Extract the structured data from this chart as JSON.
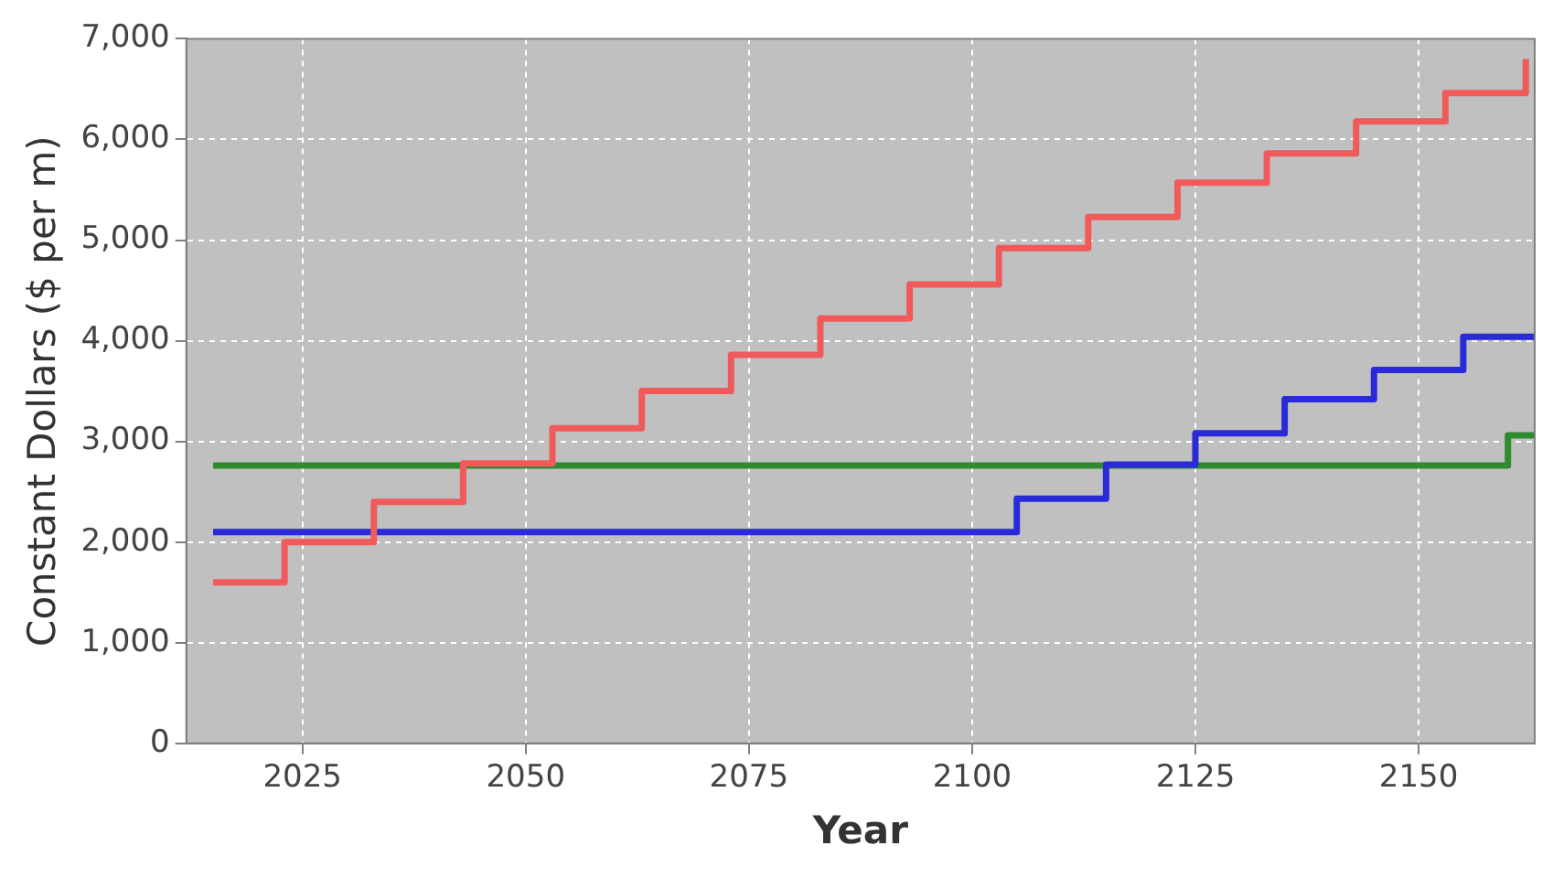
{
  "chart_data": {
    "type": "step",
    "xlabel": "Year",
    "ylabel": "Constant Dollars ($ per m)",
    "xlim": [
      2012,
      2163
    ],
    "xticks": [
      2025,
      2050,
      2075,
      2100,
      2125,
      2150
    ],
    "ylim": [
      0,
      7000
    ],
    "yticks": [
      0,
      {
        "value": 1000,
        "label": "1,000"
      },
      {
        "value": 2000,
        "label": "2,000"
      },
      {
        "value": 3000,
        "label": "3,000"
      },
      {
        "value": 4000,
        "label": "4,000"
      },
      {
        "value": 5000,
        "label": "5,000"
      },
      {
        "value": 6000,
        "label": "6,000"
      },
      {
        "value": 7000,
        "label": "7,000"
      }
    ],
    "grid": true,
    "legend": false,
    "marker": "none",
    "line_style": "solid",
    "series": [
      {
        "color": "#f05a5a",
        "x": [
          2015,
          2023,
          2033,
          2043,
          2053,
          2063,
          2073,
          2083,
          2093,
          2103,
          2113,
          2123,
          2133,
          2143,
          2153,
          2162
        ],
        "values": [
          1600,
          2000,
          2400,
          2780,
          3130,
          3500,
          3860,
          4220,
          4560,
          4920,
          5230,
          5570,
          5860,
          6180,
          6460,
          6800
        ]
      },
      {
        "color": "#2a2ad8",
        "x": [
          2015,
          2105,
          2115,
          2125,
          2135,
          2145,
          2155,
          2163
        ],
        "values": [
          2100,
          2430,
          2770,
          3080,
          3420,
          3710,
          4040,
          4040
        ]
      },
      {
        "color": "#2e8b2e",
        "x": [
          2015,
          2160,
          2163
        ],
        "values": [
          2760,
          3060,
          3060
        ]
      }
    ]
  }
}
